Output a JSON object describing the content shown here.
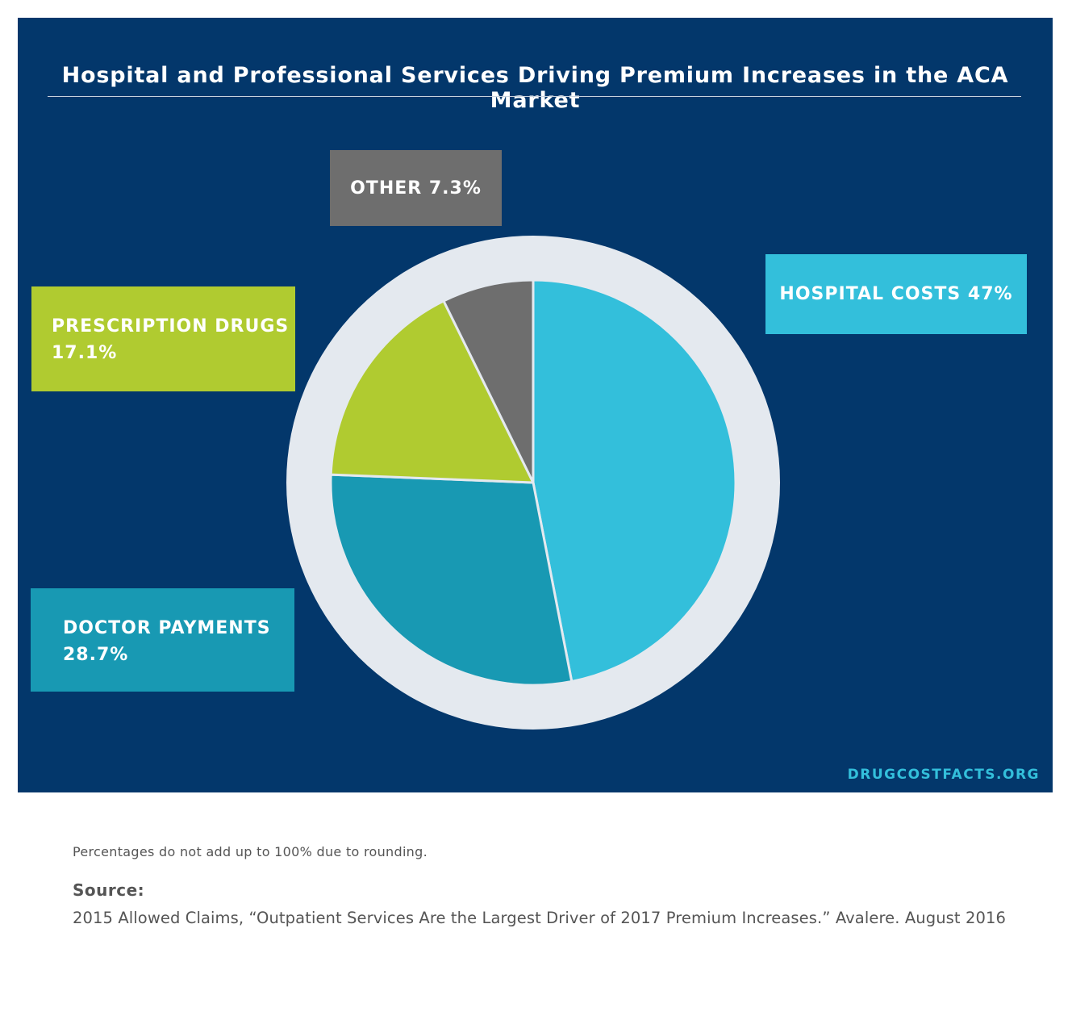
{
  "chart_data": {
    "type": "pie",
    "title": "Hospital and Professional Services Driving Premium Increases in the ACA Market",
    "slices": [
      {
        "label": "HOSPITAL COSTS 47%",
        "name": "HOSPITAL COSTS",
        "pct_text": "47%",
        "value": 47,
        "color": "#33bfdb"
      },
      {
        "label": "DOCTOR PAYMENTS",
        "name": "DOCTOR PAYMENTS",
        "pct_text": "28.7%",
        "value": 28.7,
        "color": "#1899b3"
      },
      {
        "label": "PRESCRIPTION DRUGS",
        "name": "PRESCRIPTION DRUGS",
        "pct_text": "17.1%",
        "value": 17.1,
        "color": "#b0cb30"
      },
      {
        "label": "OTHER 7.3%",
        "name": "OTHER",
        "pct_text": "7.3%",
        "value": 7.3,
        "color": "#6e6e6e"
      }
    ]
  },
  "colors": {
    "background": "#03376b",
    "ring": "#e4e9ef",
    "brand": "#33bfdb"
  },
  "brand": "DRUGCOSTFACTS.ORG",
  "footnote": "Percentages do not add up to 100% due to rounding.",
  "source": {
    "label": "Source:",
    "text": "2015 Allowed Claims, “Outpatient Services Are the Largest Driver of 2017 Premium Increases.” Avalere. August 2016"
  }
}
